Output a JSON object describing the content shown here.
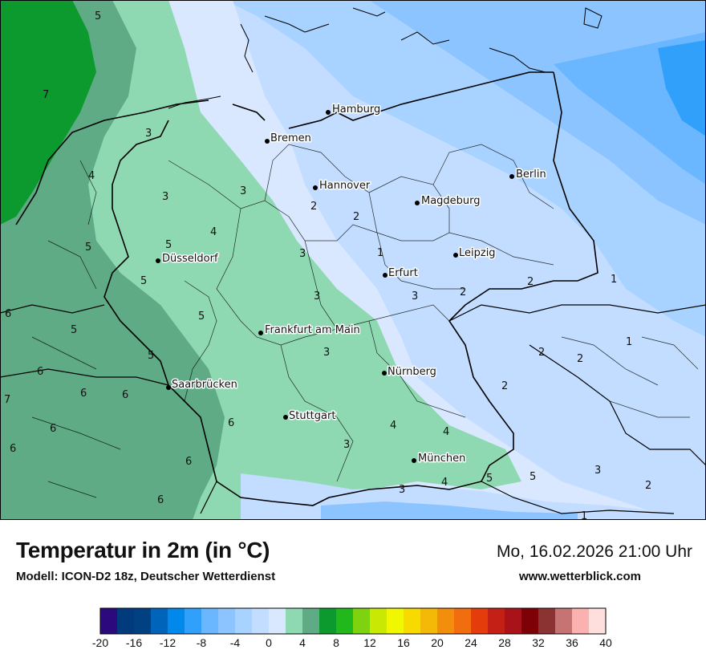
{
  "title": "Temperatur in 2m (in °C)",
  "subtitle": "Modell: ICON-D2 18z, Deutscher Wetterdienst",
  "datetime": "Mo, 16.02.2026 21:00 Uhr",
  "website": "www.wetterblick.com",
  "cities": [
    {
      "name": "Hamburg",
      "label": "Hamburg"
    },
    {
      "name": "Bremen",
      "label": "Bremen"
    },
    {
      "name": "Berlin",
      "label": "Berlin"
    },
    {
      "name": "Hannover",
      "label": "Hannover"
    },
    {
      "name": "Magdeburg",
      "label": "Magdeburg"
    },
    {
      "name": "Düsseldorf",
      "label": "Düsseldorf"
    },
    {
      "name": "Leipzig",
      "label": "Leipzig"
    },
    {
      "name": "Erfurt",
      "label": "Erfurt"
    },
    {
      "name": "Frankfurt am Main",
      "label": "Frankfurt am Main"
    },
    {
      "name": "Nürnberg",
      "label": "Nürnberg"
    },
    {
      "name": "Saarbrücken",
      "label": "Saarbrücken"
    },
    {
      "name": "Stuttgart",
      "label": "Stuttgart"
    },
    {
      "name": "München",
      "label": "München"
    }
  ],
  "isotherm_labels": [
    "5",
    "7",
    "3",
    "4",
    "3",
    "3",
    "3",
    "5",
    "4",
    "5",
    "5",
    "6",
    "5",
    "5",
    "6",
    "6",
    "7",
    "6",
    "6",
    "6",
    "6",
    "6",
    "6",
    "5",
    "2",
    "2",
    "1",
    "3",
    "3",
    "3",
    "2",
    "2",
    "1",
    "2",
    "2",
    "2",
    "1",
    "4",
    "4",
    "3",
    "3",
    "4",
    "5",
    "5",
    "3",
    "2",
    "1"
  ],
  "legend": {
    "colors": [
      "#2c0a7e",
      "#013b7e",
      "#014182",
      "#0064bb",
      "#0088ea",
      "#30a0fb",
      "#6bb7ff",
      "#8cc4ff",
      "#a8d2ff",
      "#c2ddff",
      "#d9e8ff",
      "#8fd9b2",
      "#5fab86",
      "#0c9a2e",
      "#21b81c",
      "#7fd20f",
      "#c9e803",
      "#f1f700",
      "#f6da00",
      "#f4b806",
      "#f38e0d",
      "#f26d0e",
      "#e43d0b",
      "#c52016",
      "#a91218",
      "#7d0106",
      "#8b3232",
      "#c57473",
      "#fbb1b0",
      "#ffdede"
    ],
    "ticks": [
      "-20",
      "-16",
      "-12",
      "-8",
      "-4",
      "0",
      "4",
      "8",
      "12",
      "16",
      "20",
      "24",
      "28",
      "32",
      "36",
      "40"
    ]
  }
}
